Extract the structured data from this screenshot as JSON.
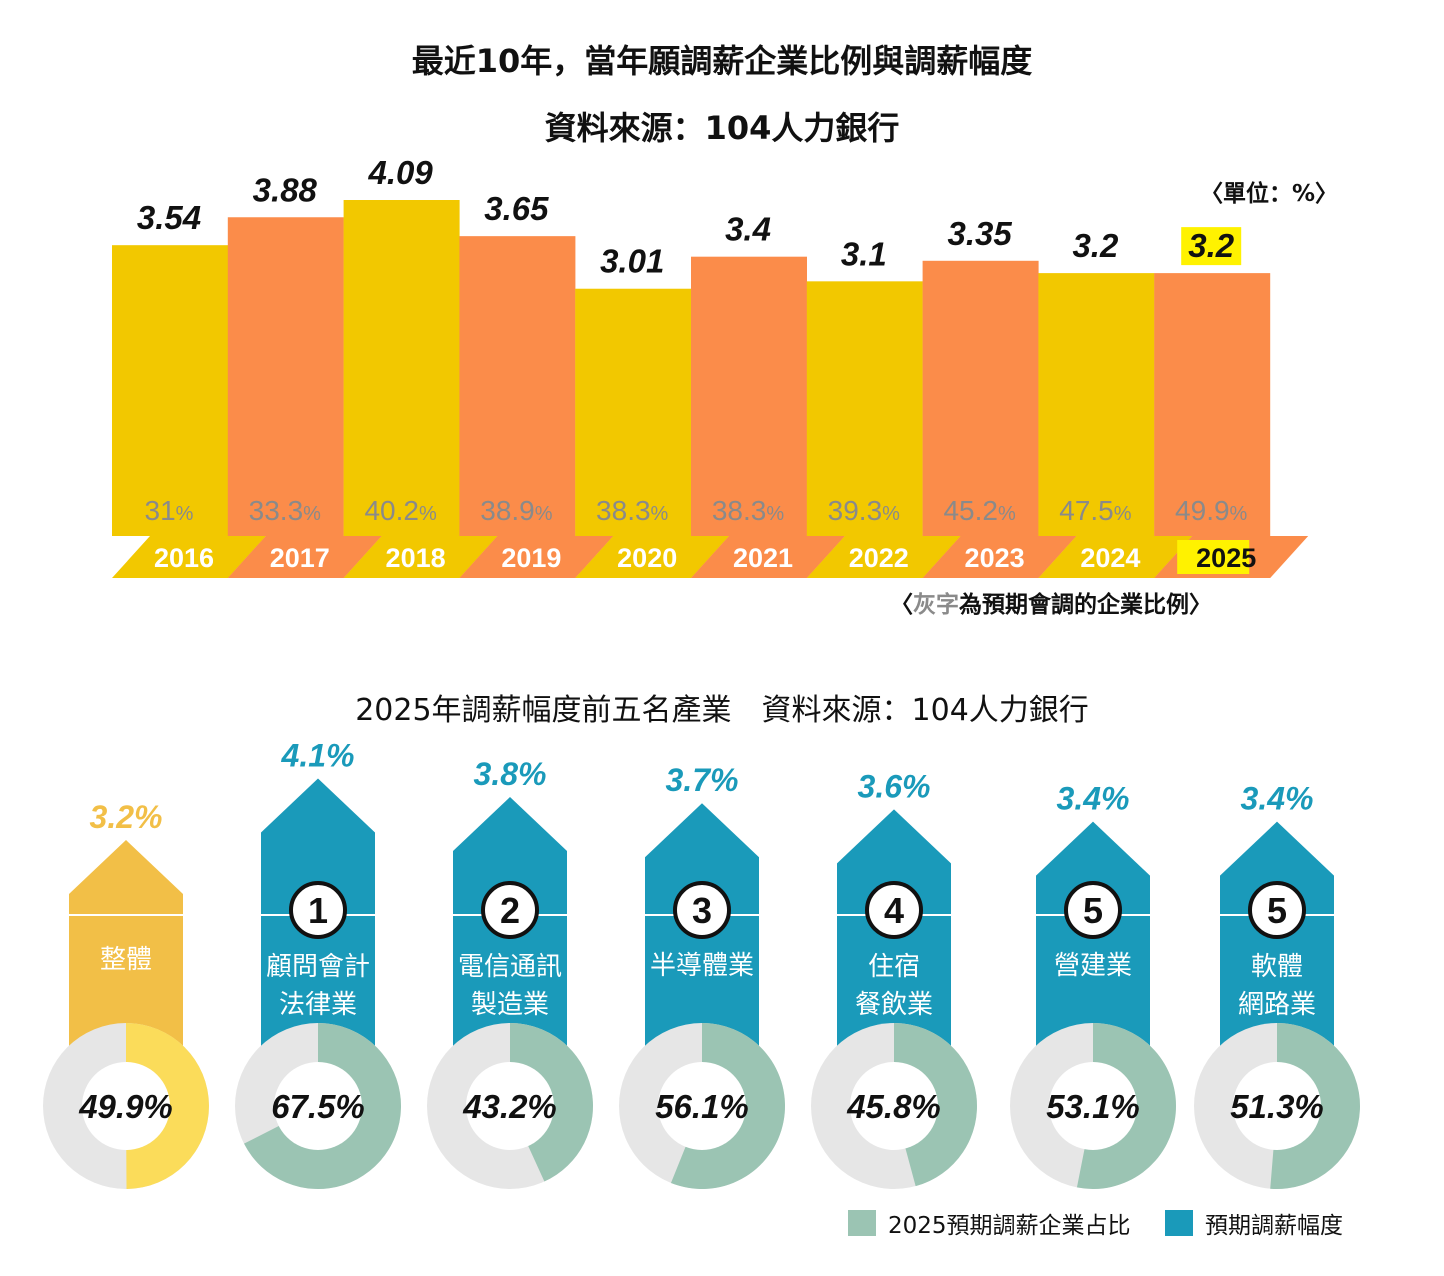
{
  "title": "最近10年，當年願調薪企業比例與調薪幅度",
  "source": "資料來源：104人力銀行",
  "unit_note": "〈單位：%〉",
  "footnote": {
    "prefix": "〈",
    "gray": "灰字",
    "rest": "為預期會調的企業比例〉"
  },
  "colors": {
    "yellow": "#F2C800",
    "orange": "#FB8C4A",
    "gray_text": "#8a8a8a",
    "teal": "#1A9ABA",
    "overall": "#F2BF47",
    "overall_ring": "#FBDC5A",
    "mint": "#9BC4B3",
    "ring_bg": "#E6E6E6",
    "highlight": "#FFF200"
  },
  "chart_data": [
    {
      "type": "bar",
      "title": "最近10年，當年願調薪企業比例與調薪幅度",
      "subtitle": "資料來源：104人力銀行",
      "categories": [
        "2016",
        "2017",
        "2018",
        "2019",
        "2020",
        "2021",
        "2022",
        "2023",
        "2024",
        "2025"
      ],
      "series": [
        {
          "name": "調薪幅度",
          "values": [
            3.54,
            3.88,
            4.09,
            3.65,
            3.01,
            3.4,
            3.1,
            3.35,
            3.2,
            3.2
          ]
        },
        {
          "name": "預期會調的企業比例",
          "values": [
            31,
            33.3,
            40.2,
            38.9,
            38.3,
            38.3,
            39.3,
            45.2,
            47.5,
            49.9
          ]
        }
      ],
      "value_labels": [
        "3.54",
        "3.88",
        "4.09",
        "3.65",
        "3.01",
        "3.4",
        "3.1",
        "3.35",
        "3.2",
        "3.2"
      ],
      "pct_labels": [
        "31",
        "33.3",
        "40.2",
        "38.9",
        "38.3",
        "38.3",
        "39.3",
        "45.2",
        "47.5",
        "49.9"
      ],
      "pct_unit": "%",
      "bar_colors": [
        "yellow",
        "orange",
        "yellow",
        "orange",
        "yellow",
        "orange",
        "yellow",
        "orange",
        "yellow",
        "orange"
      ],
      "highlight_index": 9,
      "ylim": [
        0,
        4.5
      ],
      "grid": false
    },
    {
      "type": "pie",
      "title": "2025年調薪幅度前五名產業　資料來源：104人力銀行",
      "categories": [
        "整體",
        "顧問會計法律業",
        "電信通訊製造業",
        "半導體業",
        "住宿餐飲業",
        "營建業",
        "軟體網路業"
      ],
      "ranks": [
        "",
        "1",
        "2",
        "3",
        "4",
        "5",
        "5"
      ],
      "label_lines": [
        [
          "整體"
        ],
        [
          "顧問會計",
          "法律業"
        ],
        [
          "電信通訊",
          "製造業"
        ],
        [
          "半導體業"
        ],
        [
          "住宿",
          "餐飲業"
        ],
        [
          "營建業"
        ],
        [
          "軟體",
          "網路業"
        ]
      ],
      "series": [
        {
          "name": "預期調薪幅度",
          "values": [
            3.2,
            4.1,
            3.8,
            3.7,
            3.6,
            3.4,
            3.4
          ],
          "labels": [
            "3.2%",
            "4.1%",
            "3.8%",
            "3.7%",
            "3.6%",
            "3.4%",
            "3.4%"
          ]
        },
        {
          "name": "2025預期調薪企業占比",
          "values": [
            49.9,
            67.5,
            43.2,
            56.1,
            45.8,
            53.1,
            51.3
          ],
          "labels": [
            "49.9%",
            "67.5%",
            "43.2%",
            "56.1%",
            "45.8%",
            "53.1%",
            "51.3%"
          ]
        }
      ]
    }
  ],
  "legend": [
    {
      "label": "2025預期調薪企業占比",
      "color": "#9BC4B3"
    },
    {
      "label": "預期調薪幅度",
      "color": "#1A9ABA"
    }
  ]
}
